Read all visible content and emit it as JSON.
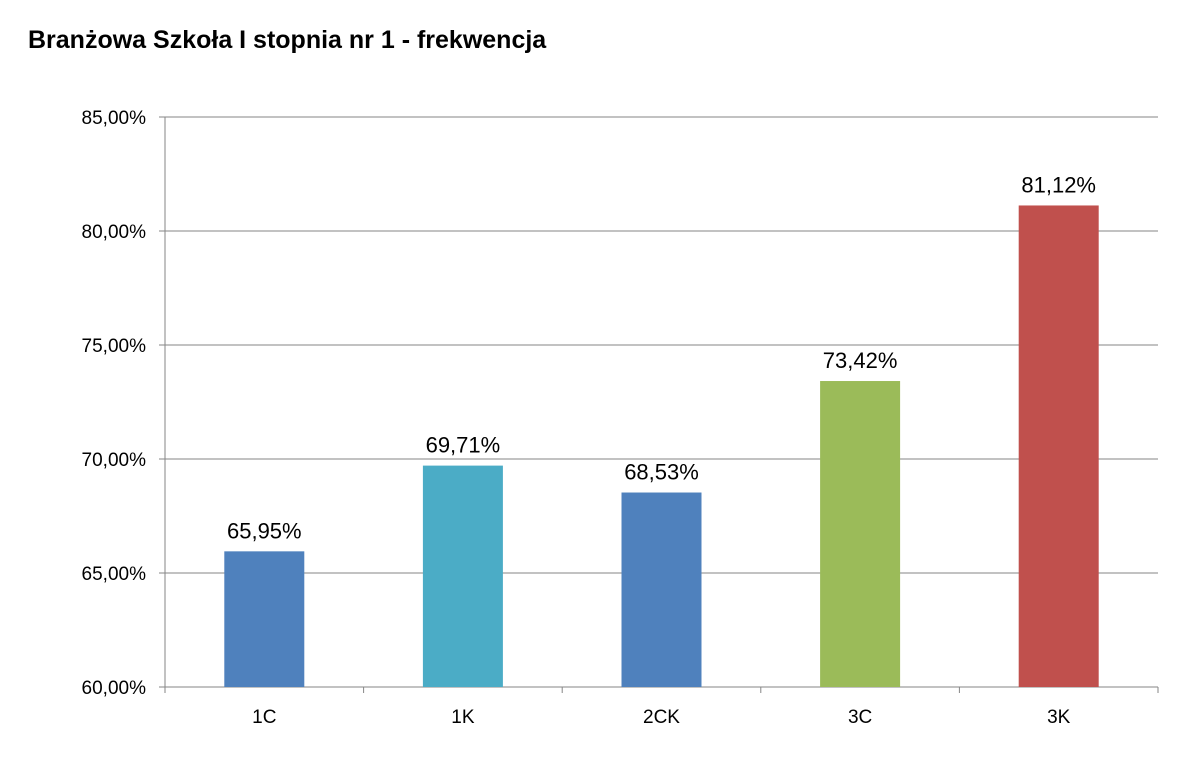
{
  "chart_data": {
    "type": "bar",
    "title": "Branżowa Szkoła I stopnia nr 1 - frekwencja",
    "xlabel": "",
    "ylabel": "",
    "categories": [
      "1C",
      "1K",
      "2CK",
      "3C",
      "3K"
    ],
    "values": [
      65.95,
      69.71,
      68.53,
      73.42,
      81.12
    ],
    "data_labels": [
      "65,95%",
      "69,71%",
      "68,53%",
      "73,42%",
      "81,12%"
    ],
    "bar_colors": [
      "#4F81BD",
      "#4BACC6",
      "#4F81BD",
      "#9BBB59",
      "#C0504D"
    ],
    "ylim": [
      60,
      85
    ],
    "yticks": [
      60,
      65,
      70,
      75,
      80,
      85
    ],
    "ytick_labels": [
      "60,00%",
      "65,00%",
      "70,00%",
      "75,00%",
      "80,00%",
      "85,00%"
    ],
    "grid": true,
    "legend": "none"
  }
}
